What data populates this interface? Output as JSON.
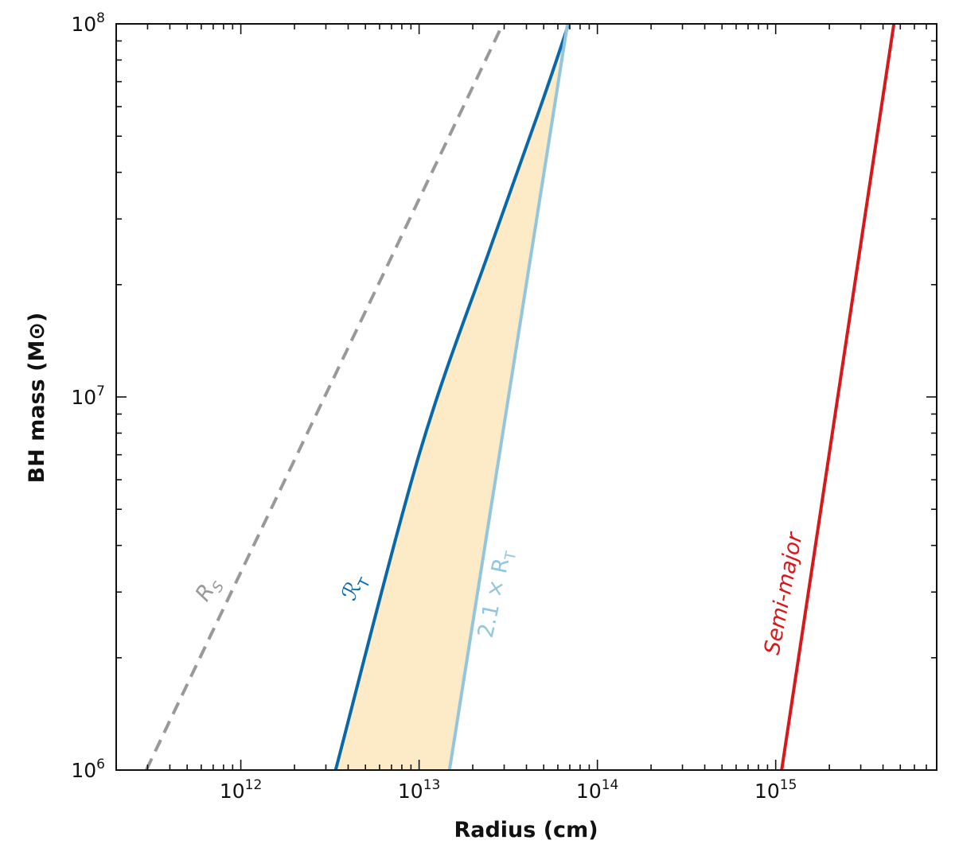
{
  "chart_data": {
    "type": "line",
    "title": "",
    "xlabel": "Radius (cm)",
    "ylabel": "BH mass (M⊙)",
    "xscale": "log",
    "yscale": "log",
    "xlim": [
      200000000000.0,
      8000000000000000.0
    ],
    "ylim": [
      1000000.0,
      100000000.0
    ],
    "grid": false,
    "x_ticks": [
      {
        "base": "10",
        "exp": "12",
        "value": 1000000000000.0
      },
      {
        "base": "10",
        "exp": "13",
        "value": 10000000000000.0
      },
      {
        "base": "10",
        "exp": "14",
        "value": 100000000000000.0
      },
      {
        "base": "10",
        "exp": "15",
        "value": 1000000000000000.0
      }
    ],
    "y_ticks": [
      {
        "base": "10",
        "exp": "6",
        "value": 1000000.0
      },
      {
        "base": "10",
        "exp": "7",
        "value": 10000000.0
      },
      {
        "base": "10",
        "exp": "8",
        "value": 100000000.0
      }
    ],
    "series": [
      {
        "key": "rs",
        "label_main": "R",
        "label_sub": "S",
        "color": "#999999",
        "style": "dashed",
        "points": [
          [
            295000000000.0,
            1000000.0
          ],
          [
            29500000000000.0,
            100000000.0
          ]
        ]
      },
      {
        "key": "rt",
        "label_main": "ℛ",
        "label_sub": "T",
        "color": "#0868a8",
        "style": "solid",
        "points": [
          [
            3400000000000.0,
            1000000.0
          ],
          [
            10000000000000.0,
            7000000.0
          ],
          [
            25000000000000.0,
            25000000.0
          ],
          [
            48000000000000.0,
            60000000.0
          ],
          [
            69000000000000.0,
            100000000.0
          ]
        ]
      },
      {
        "key": "rt21",
        "label_main": "2.1 × R",
        "label_sub": "T",
        "color": "#92c5de",
        "style": "solid",
        "points": [
          [
            14800000000000.0,
            1000000.0
          ],
          [
            68000000000000.0,
            100000000.0
          ]
        ]
      },
      {
        "key": "semimajor",
        "label_main": "Semi-major",
        "label_sub": "",
        "color": "#d7191c",
        "style": "solid",
        "points": [
          [
            1080000000000000.0,
            1000000.0
          ],
          [
            4600000000000000.0,
            100000000.0
          ]
        ]
      }
    ],
    "fill_between": {
      "from": "rt",
      "to": "rt21",
      "color": "#fdebc8"
    }
  }
}
